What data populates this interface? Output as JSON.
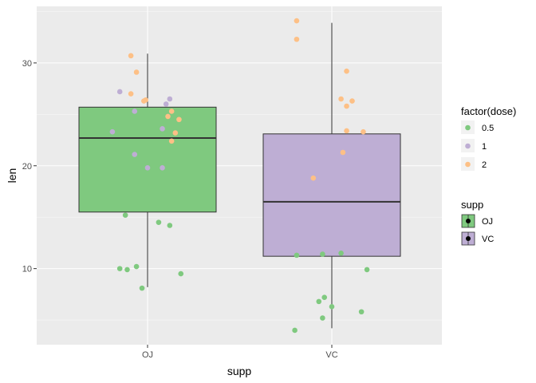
{
  "chart_data": {
    "type": "box",
    "xlabel": "supp",
    "ylabel": "len",
    "categories": [
      "OJ",
      "VC"
    ],
    "ylim": [
      2.6,
      35.5
    ],
    "y_ticks": [
      10,
      20,
      30
    ],
    "y_tick_labels": [
      "10",
      "20",
      "30"
    ],
    "grid": true,
    "panel_background": "#ebebeb",
    "boxes": [
      {
        "category": "OJ",
        "min": 8.2,
        "q1": 15.5,
        "median": 22.7,
        "q3": 25.7,
        "max": 30.9,
        "fill": "#7fc97f"
      },
      {
        "category": "VC",
        "min": 4.2,
        "q1": 11.2,
        "median": 16.5,
        "q3": 23.1,
        "max": 33.9,
        "fill": "#beaed4"
      }
    ],
    "points_legend_title": "factor(dose)",
    "points_series": [
      {
        "name": "0.5",
        "color": "#7fc97f",
        "points": [
          {
            "x": "OJ",
            "jitter": -0.12,
            "y": 15.2
          },
          {
            "x": "OJ",
            "jitter": 0.06,
            "y": 14.5
          },
          {
            "x": "OJ",
            "jitter": 0.12,
            "y": 14.2
          },
          {
            "x": "OJ",
            "jitter": -0.15,
            "y": 10.0
          },
          {
            "x": "OJ",
            "jitter": -0.11,
            "y": 9.9
          },
          {
            "x": "OJ",
            "jitter": -0.06,
            "y": 10.2
          },
          {
            "x": "OJ",
            "jitter": 0.18,
            "y": 9.5
          },
          {
            "x": "OJ",
            "jitter": -0.03,
            "y": 8.1
          },
          {
            "x": "VC",
            "jitter": -0.19,
            "y": 11.3
          },
          {
            "x": "VC",
            "jitter": -0.05,
            "y": 11.4
          },
          {
            "x": "VC",
            "jitter": 0.05,
            "y": 11.5
          },
          {
            "x": "VC",
            "jitter": 0.19,
            "y": 9.9
          },
          {
            "x": "VC",
            "jitter": -0.04,
            "y": 7.2
          },
          {
            "x": "VC",
            "jitter": -0.07,
            "y": 6.8
          },
          {
            "x": "VC",
            "jitter": 0.0,
            "y": 6.3
          },
          {
            "x": "VC",
            "jitter": 0.16,
            "y": 5.8
          },
          {
            "x": "VC",
            "jitter": -0.05,
            "y": 5.2
          },
          {
            "x": "VC",
            "jitter": -0.2,
            "y": 4.0
          }
        ]
      },
      {
        "name": "1",
        "color": "#beaed4",
        "points": [
          {
            "x": "OJ",
            "jitter": -0.15,
            "y": 27.2
          },
          {
            "x": "OJ",
            "jitter": 0.1,
            "y": 26.0
          },
          {
            "x": "OJ",
            "jitter": 0.12,
            "y": 26.5
          },
          {
            "x": "OJ",
            "jitter": -0.07,
            "y": 25.3
          },
          {
            "x": "OJ",
            "jitter": 0.08,
            "y": 23.6
          },
          {
            "x": "OJ",
            "jitter": -0.19,
            "y": 23.3
          },
          {
            "x": "OJ",
            "jitter": -0.07,
            "y": 21.1
          },
          {
            "x": "OJ",
            "jitter": 0.0,
            "y": 19.8
          },
          {
            "x": "OJ",
            "jitter": 0.08,
            "y": 19.8
          }
        ]
      },
      {
        "name": "2",
        "color": "#fdc086",
        "points": [
          {
            "x": "OJ",
            "jitter": -0.09,
            "y": 30.7
          },
          {
            "x": "OJ",
            "jitter": -0.06,
            "y": 29.1
          },
          {
            "x": "OJ",
            "jitter": -0.09,
            "y": 27.0
          },
          {
            "x": "OJ",
            "jitter": -0.01,
            "y": 26.4
          },
          {
            "x": "OJ",
            "jitter": -0.02,
            "y": 26.3
          },
          {
            "x": "OJ",
            "jitter": 0.13,
            "y": 25.3
          },
          {
            "x": "OJ",
            "jitter": 0.11,
            "y": 24.8
          },
          {
            "x": "OJ",
            "jitter": 0.17,
            "y": 24.5
          },
          {
            "x": "OJ",
            "jitter": 0.15,
            "y": 23.2
          },
          {
            "x": "OJ",
            "jitter": 0.13,
            "y": 22.4
          },
          {
            "x": "VC",
            "jitter": -0.19,
            "y": 34.1
          },
          {
            "x": "VC",
            "jitter": -0.19,
            "y": 32.3
          },
          {
            "x": "VC",
            "jitter": 0.08,
            "y": 29.2
          },
          {
            "x": "VC",
            "jitter": 0.05,
            "y": 26.5
          },
          {
            "x": "VC",
            "jitter": 0.11,
            "y": 26.3
          },
          {
            "x": "VC",
            "jitter": 0.08,
            "y": 25.8
          },
          {
            "x": "VC",
            "jitter": 0.08,
            "y": 23.4
          },
          {
            "x": "VC",
            "jitter": 0.17,
            "y": 23.3
          },
          {
            "x": "VC",
            "jitter": 0.06,
            "y": 21.3
          },
          {
            "x": "VC",
            "jitter": -0.1,
            "y": 18.8
          }
        ]
      }
    ],
    "fill_legend_title": "supp",
    "fill_legend": [
      {
        "name": "OJ",
        "color": "#7fc97f"
      },
      {
        "name": "VC",
        "color": "#beaed4"
      }
    ]
  }
}
